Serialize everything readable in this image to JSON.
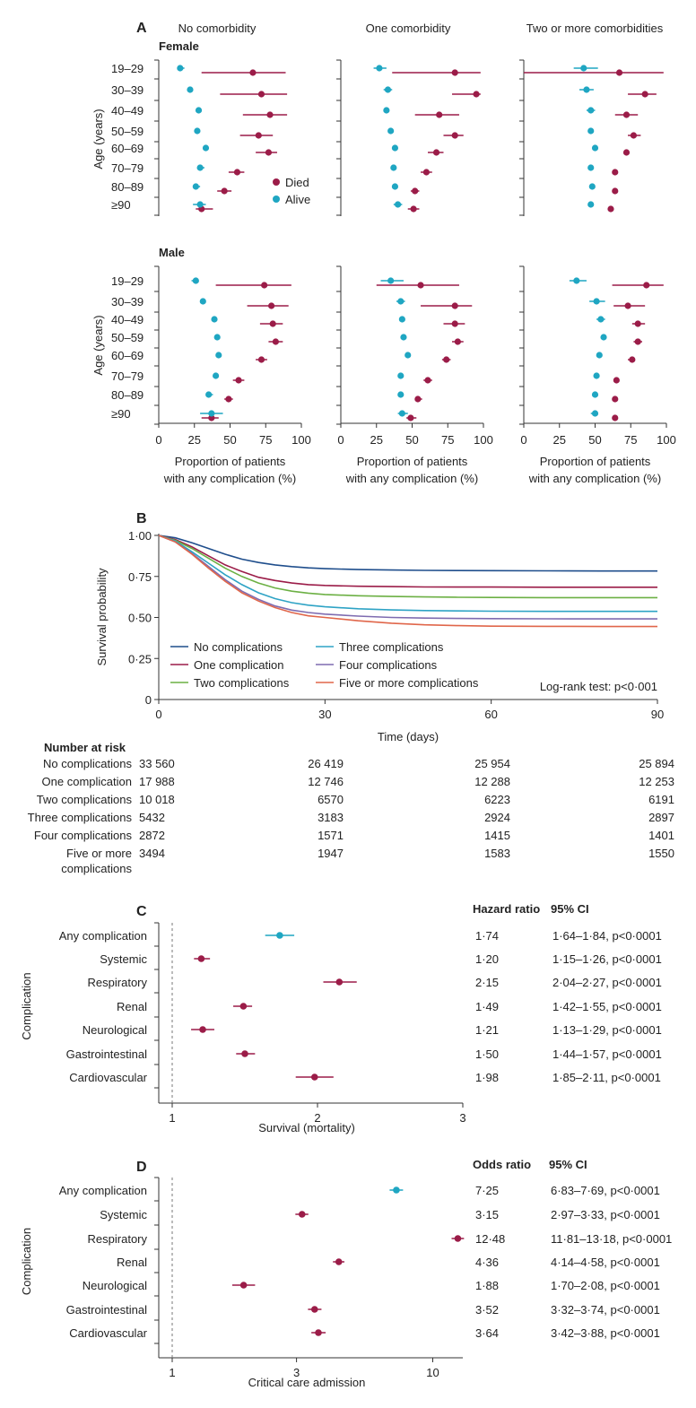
{
  "colors": {
    "died": "#9b1c48",
    "alive": "#1fa6c2",
    "axis": "#333333",
    "dash": "#777777"
  },
  "panelA": {
    "letter": "A",
    "columns": [
      "No comorbidity",
      "One comorbidity",
      "Two or more comorbidities"
    ],
    "sexes": [
      "Female",
      "Male"
    ],
    "age_groups": [
      "19–29",
      "30–39",
      "40–49",
      "50–59",
      "60–69",
      "70–79",
      "80–89",
      "≥90"
    ],
    "ylabel": "Age (years)",
    "xlabel_line1": "Proportion of patients",
    "xlabel_line2": "with any complication (%)",
    "x_ticks": [
      "0",
      "25",
      "50",
      "75",
      "100"
    ],
    "legend": {
      "died": "Died",
      "alive": "Alive"
    }
  },
  "chart_data": [
    {
      "type": "scatter",
      "panel": "A",
      "subtitle": "Female",
      "xlim": [
        0,
        100
      ],
      "categories": [
        "19–29",
        "30–39",
        "40–49",
        "50–59",
        "60–69",
        "70–79",
        "80–89",
        "≥90"
      ],
      "facets": [
        {
          "title": "No comorbidity",
          "died": [
            [
              66,
              30,
              89
            ],
            [
              72,
              43,
              90
            ],
            [
              78,
              59,
              90
            ],
            [
              70,
              57,
              80
            ],
            [
              77,
              68,
              83
            ],
            [
              55,
              49,
              60
            ],
            [
              46,
              41,
              51
            ],
            [
              30,
              26,
              38
            ]
          ],
          "alive": [
            [
              15,
              13,
              18
            ],
            [
              22,
              20,
              24
            ],
            [
              28,
              26,
              30
            ],
            [
              27,
              25,
              29
            ],
            [
              33,
              31,
              35
            ],
            [
              29,
              27,
              32
            ],
            [
              26,
              24,
              29
            ],
            [
              29,
              24,
              33
            ]
          ]
        },
        {
          "title": "One comorbidity",
          "died": [
            [
              80,
              36,
              98
            ],
            [
              95,
              78,
              98
            ],
            [
              69,
              52,
              83
            ],
            [
              80,
              72,
              86
            ],
            [
              67,
              61,
              72
            ],
            [
              60,
              56,
              64
            ],
            [
              52,
              49,
              55
            ],
            [
              51,
              47,
              55
            ]
          ],
          "alive": [
            [
              27,
              23,
              32
            ],
            [
              33,
              30,
              36
            ],
            [
              32,
              30,
              34
            ],
            [
              35,
              33,
              37
            ],
            [
              38,
              36,
              40
            ],
            [
              37,
              35,
              39
            ],
            [
              38,
              36,
              40
            ],
            [
              40,
              37,
              43
            ]
          ]
        },
        {
          "title": "Two or more comorbidities",
          "died": [
            [
              67,
              0,
              98
            ],
            [
              85,
              73,
              93
            ],
            [
              72,
              64,
              80
            ],
            [
              77,
              73,
              82
            ],
            [
              72,
              70,
              74
            ],
            [
              64,
              62,
              66
            ],
            [
              64,
              63,
              66
            ],
            [
              61,
              59,
              63
            ]
          ],
          "alive": [
            [
              42,
              35,
              52
            ],
            [
              44,
              39,
              49
            ],
            [
              47,
              44,
              50
            ],
            [
              47,
              45,
              49
            ],
            [
              50,
              48,
              52
            ],
            [
              47,
              46,
              48
            ],
            [
              48,
              47,
              50
            ],
            [
              47,
              46,
              48
            ]
          ]
        }
      ]
    },
    {
      "type": "scatter",
      "panel": "A",
      "subtitle": "Male",
      "xlim": [
        0,
        100
      ],
      "categories": [
        "19–29",
        "30–39",
        "40–49",
        "50–59",
        "60–69",
        "70–79",
        "80–89",
        "≥90"
      ],
      "facets": [
        {
          "title": "No comorbidity",
          "died": [
            [
              74,
              40,
              93
            ],
            [
              79,
              62,
              91
            ],
            [
              80,
              71,
              87
            ],
            [
              82,
              77,
              87
            ],
            [
              72,
              68,
              76
            ],
            [
              56,
              52,
              60
            ],
            [
              49,
              46,
              52
            ],
            [
              37,
              30,
              42
            ]
          ],
          "alive": [
            [
              26,
              23,
              28
            ],
            [
              31,
              29,
              33
            ],
            [
              39,
              37,
              41
            ],
            [
              41,
              39,
              43
            ],
            [
              42,
              40,
              44
            ],
            [
              40,
              38,
              42
            ],
            [
              35,
              33,
              38
            ],
            [
              37,
              29,
              45
            ]
          ]
        },
        {
          "title": "One comorbidity",
          "died": [
            [
              56,
              25,
              83
            ],
            [
              80,
              56,
              92
            ],
            [
              80,
              72,
              87
            ],
            [
              82,
              78,
              86
            ],
            [
              74,
              71,
              77
            ],
            [
              61,
              58,
              64
            ],
            [
              54,
              52,
              57
            ],
            [
              49,
              46,
              53
            ]
          ],
          "alive": [
            [
              35,
              28,
              44
            ],
            [
              42,
              39,
              45
            ],
            [
              43,
              41,
              45
            ],
            [
              44,
              42,
              46
            ],
            [
              47,
              45,
              49
            ],
            [
              42,
              40,
              44
            ],
            [
              42,
              40,
              44
            ],
            [
              43,
              40,
              47
            ]
          ]
        },
        {
          "title": "Two or more comorbidities",
          "died": [
            [
              86,
              62,
              98
            ],
            [
              73,
              63,
              85
            ],
            [
              80,
              76,
              85
            ],
            [
              80,
              77,
              83
            ],
            [
              76,
              73,
              78
            ],
            [
              65,
              63,
              67
            ],
            [
              64,
              62,
              65
            ],
            [
              64,
              62,
              65
            ]
          ],
          "alive": [
            [
              37,
              32,
              44
            ],
            [
              51,
              46,
              57
            ],
            [
              54,
              51,
              57
            ],
            [
              56,
              54,
              58
            ],
            [
              53,
              51,
              55
            ],
            [
              51,
              49,
              53
            ],
            [
              50,
              48,
              51
            ],
            [
              50,
              47,
              52
            ]
          ]
        }
      ]
    },
    {
      "type": "line",
      "panel": "B",
      "xlabel": "Time (days)",
      "ylabel": "Survival probability",
      "xlim": [
        0,
        90
      ],
      "ylim": [
        0,
        1
      ],
      "x_ticks": [
        "0",
        "30",
        "60",
        "90"
      ],
      "y_ticks": [
        "0",
        "0·25",
        "0·50",
        "0·75",
        "1·00"
      ],
      "annotation": "Log-rank test: p<0·001",
      "x": [
        0,
        3,
        6,
        9,
        12,
        15,
        18,
        21,
        24,
        27,
        30,
        36,
        42,
        48,
        54,
        60,
        70,
        80,
        90
      ],
      "series": [
        {
          "name": "No complications",
          "color": "#1f4e8c",
          "values": [
            1.0,
            0.985,
            0.955,
            0.92,
            0.885,
            0.855,
            0.835,
            0.82,
            0.81,
            0.802,
            0.797,
            0.792,
            0.789,
            0.787,
            0.786,
            0.785,
            0.784,
            0.783,
            0.783
          ]
        },
        {
          "name": "One complication",
          "color": "#9b1c48",
          "values": [
            1.0,
            0.975,
            0.93,
            0.875,
            0.82,
            0.78,
            0.745,
            0.725,
            0.71,
            0.7,
            0.695,
            0.69,
            0.688,
            0.686,
            0.685,
            0.685,
            0.684,
            0.684,
            0.684
          ]
        },
        {
          "name": "Two complications",
          "color": "#6cb044",
          "values": [
            1.0,
            0.97,
            0.92,
            0.86,
            0.8,
            0.75,
            0.71,
            0.68,
            0.66,
            0.648,
            0.64,
            0.632,
            0.628,
            0.625,
            0.623,
            0.622,
            0.621,
            0.621,
            0.621
          ]
        },
        {
          "name": "Three complications",
          "color": "#2ea3c5",
          "values": [
            1.0,
            0.965,
            0.9,
            0.83,
            0.76,
            0.7,
            0.65,
            0.615,
            0.59,
            0.575,
            0.565,
            0.553,
            0.546,
            0.542,
            0.54,
            0.538,
            0.537,
            0.537,
            0.537
          ]
        },
        {
          "name": "Four complications",
          "color": "#7e6bb0",
          "values": [
            1.0,
            0.96,
            0.89,
            0.81,
            0.73,
            0.66,
            0.61,
            0.57,
            0.545,
            0.53,
            0.52,
            0.508,
            0.5,
            0.496,
            0.494,
            0.493,
            0.492,
            0.491,
            0.491
          ]
        },
        {
          "name": "Five or more complications",
          "color": "#e0664a",
          "values": [
            1.0,
            0.96,
            0.885,
            0.8,
            0.72,
            0.65,
            0.6,
            0.56,
            0.53,
            0.51,
            0.5,
            0.48,
            0.465,
            0.455,
            0.45,
            0.447,
            0.446,
            0.445,
            0.445
          ]
        }
      ],
      "risk_table": {
        "title": "Number at risk",
        "rows": [
          {
            "label": "No complications",
            "values": [
              "33 560",
              "26 419",
              "25 954",
              "25 894"
            ]
          },
          {
            "label": "One complication",
            "values": [
              "17 988",
              "12 746",
              "12 288",
              "12 253"
            ]
          },
          {
            "label": "Two complications",
            "values": [
              "10 018",
              "6570",
              "6223",
              "6191"
            ]
          },
          {
            "label": "Three complications",
            "values": [
              "5432",
              "3183",
              "2924",
              "2897"
            ]
          },
          {
            "label": "Four complications",
            "values": [
              "2872",
              "1571",
              "1415",
              "1401"
            ]
          },
          {
            "label": "Five or more",
            "label2": "complications",
            "values": [
              "3494",
              "1947",
              "1583",
              "1550"
            ]
          }
        ]
      }
    },
    {
      "type": "scatter",
      "panel": "C",
      "xlabel": "Survival (mortality)",
      "ylabel": "Complication",
      "xlim": [
        0.95,
        3
      ],
      "x_ticks": [
        "1",
        "2",
        "3"
      ],
      "col_headers": [
        "Hazard ratio",
        "95% CI"
      ],
      "rows": [
        {
          "label": "Any complication",
          "value": 1.74,
          "lo": 1.64,
          "hi": 1.84,
          "text": "1·74",
          "ci": "1·64–1·84, p<0·0001",
          "highlight": true
        },
        {
          "label": "Systemic",
          "value": 1.2,
          "lo": 1.15,
          "hi": 1.26,
          "text": "1·20",
          "ci": "1·15–1·26, p<0·0001"
        },
        {
          "label": "Respiratory",
          "value": 2.15,
          "lo": 2.04,
          "hi": 2.27,
          "text": "2·15",
          "ci": "2·04–2·27, p<0·0001"
        },
        {
          "label": "Renal",
          "value": 1.49,
          "lo": 1.42,
          "hi": 1.55,
          "text": "1·49",
          "ci": "1·42–1·55, p<0·0001"
        },
        {
          "label": "Neurological",
          "value": 1.21,
          "lo": 1.13,
          "hi": 1.29,
          "text": "1·21",
          "ci": "1·13–1·29, p<0·0001"
        },
        {
          "label": "Gastrointestinal",
          "value": 1.5,
          "lo": 1.44,
          "hi": 1.57,
          "text": "1·50",
          "ci": "1·44–1·57, p<0·0001"
        },
        {
          "label": "Cardiovascular",
          "value": 1.98,
          "lo": 1.85,
          "hi": 2.11,
          "text": "1·98",
          "ci": "1·85–2·11, p<0·0001"
        }
      ]
    },
    {
      "type": "scatter",
      "panel": "D",
      "xlabel": "Critical care admission",
      "ylabel": "Complication",
      "x_scale": "log",
      "xlim": [
        0.8,
        13
      ],
      "x_ticks": [
        "1",
        "3",
        "10"
      ],
      "col_headers": [
        "Odds ratio",
        "95% CI"
      ],
      "rows": [
        {
          "label": "Any complication",
          "value": 7.25,
          "lo": 6.83,
          "hi": 7.69,
          "text": "7·25",
          "ci": "6·83–7·69, p<0·0001",
          "highlight": true
        },
        {
          "label": "Systemic",
          "value": 3.15,
          "lo": 2.97,
          "hi": 3.33,
          "text": "3·15",
          "ci": "2·97–3·33, p<0·0001"
        },
        {
          "label": "Respiratory",
          "value": 12.48,
          "lo": 11.81,
          "hi": 13.18,
          "text": "12·48",
          "ci": "11·81–13·18, p<0·0001"
        },
        {
          "label": "Renal",
          "value": 4.36,
          "lo": 4.14,
          "hi": 4.58,
          "text": "4·36",
          "ci": "4·14–4·58, p<0·0001"
        },
        {
          "label": "Neurological",
          "value": 1.88,
          "lo": 1.7,
          "hi": 2.08,
          "text": "1·88",
          "ci": "1·70–2·08, p<0·0001"
        },
        {
          "label": "Gastrointestinal",
          "value": 3.52,
          "lo": 3.32,
          "hi": 3.74,
          "text": "3·52",
          "ci": "3·32–3·74, p<0·0001"
        },
        {
          "label": "Cardiovascular",
          "value": 3.64,
          "lo": 3.42,
          "hi": 3.88,
          "text": "3·64",
          "ci": "3·42–3·88, p<0·0001"
        }
      ]
    }
  ],
  "panel_letters": {
    "B": "B",
    "C": "C",
    "D": "D"
  }
}
